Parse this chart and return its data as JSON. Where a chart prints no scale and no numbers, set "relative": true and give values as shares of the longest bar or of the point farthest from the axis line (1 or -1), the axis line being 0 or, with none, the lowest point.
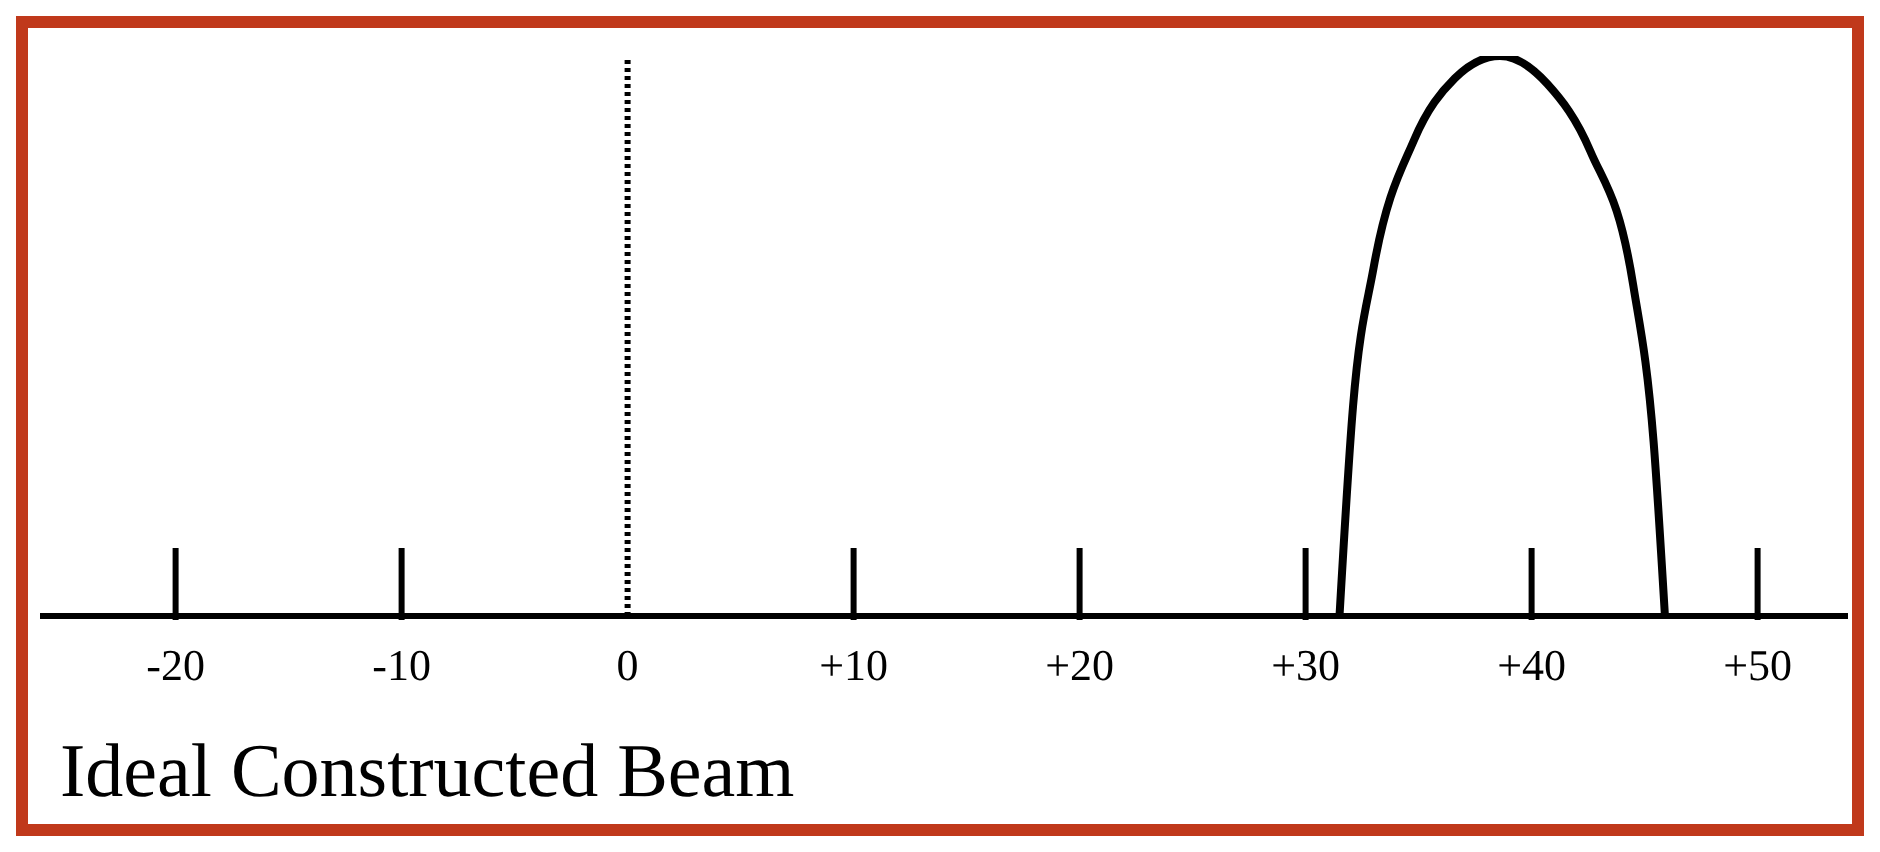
{
  "chart_data": {
    "type": "line",
    "title": "Ideal Constructed Beam",
    "relative": true,
    "xlim": [
      -26,
      54
    ],
    "xticks": [
      -20,
      -10,
      0,
      {
        "value": 10,
        "label": "+10"
      },
      {
        "value": 20,
        "label": "+20"
      },
      {
        "value": 30,
        "label": "+30"
      },
      {
        "value": 40,
        "label": "+40"
      },
      {
        "value": 50,
        "label": "+50"
      }
    ],
    "marker": "none",
    "grid": false,
    "legend": false,
    "ref_lines": [
      {
        "axis": "x",
        "value": 0,
        "line_style": "dotted",
        "color": "#000000"
      }
    ],
    "series": [
      {
        "color": "#000000",
        "line_style": "solid",
        "x": [
          31.5,
          32.1,
          33.0,
          34.8,
          36.6,
          38.6,
          40.7,
          42.6,
          44.5,
          45.4,
          45.9
        ],
        "values": [
          0,
          0.375,
          0.62,
          0.85,
          0.96,
          1.0,
          0.95,
          0.83,
          0.59,
          0.31,
          0
        ]
      }
    ]
  }
}
